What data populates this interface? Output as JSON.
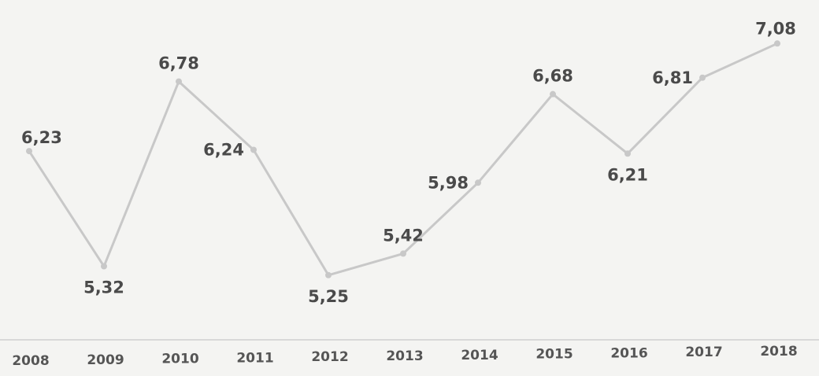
{
  "chart_data": {
    "type": "line",
    "categories": [
      "2008",
      "2009",
      "2010",
      "2011",
      "2012",
      "2013",
      "2014",
      "2015",
      "2016",
      "2017",
      "2018"
    ],
    "series": [
      {
        "values": [
          6.23,
          5.32,
          6.78,
          6.24,
          5.25,
          5.42,
          5.98,
          6.68,
          6.21,
          6.81,
          7.08
        ]
      }
    ],
    "data_labels": [
      "6,23",
      "5,32",
      "6,78",
      "6,24",
      "5,25",
      "5,42",
      "5,98",
      "6,68",
      "6,21",
      "6,81",
      "7,08"
    ],
    "title": "",
    "xlabel": "",
    "ylabel": "",
    "ylim": [
      5.0,
      7.2
    ],
    "grid": false,
    "y_axis_visible": false,
    "colors": {
      "line": "#c8c8c8",
      "marker": "#c8c8c8",
      "axis": "#cfcfcf",
      "text": "#4a4a4a"
    }
  }
}
